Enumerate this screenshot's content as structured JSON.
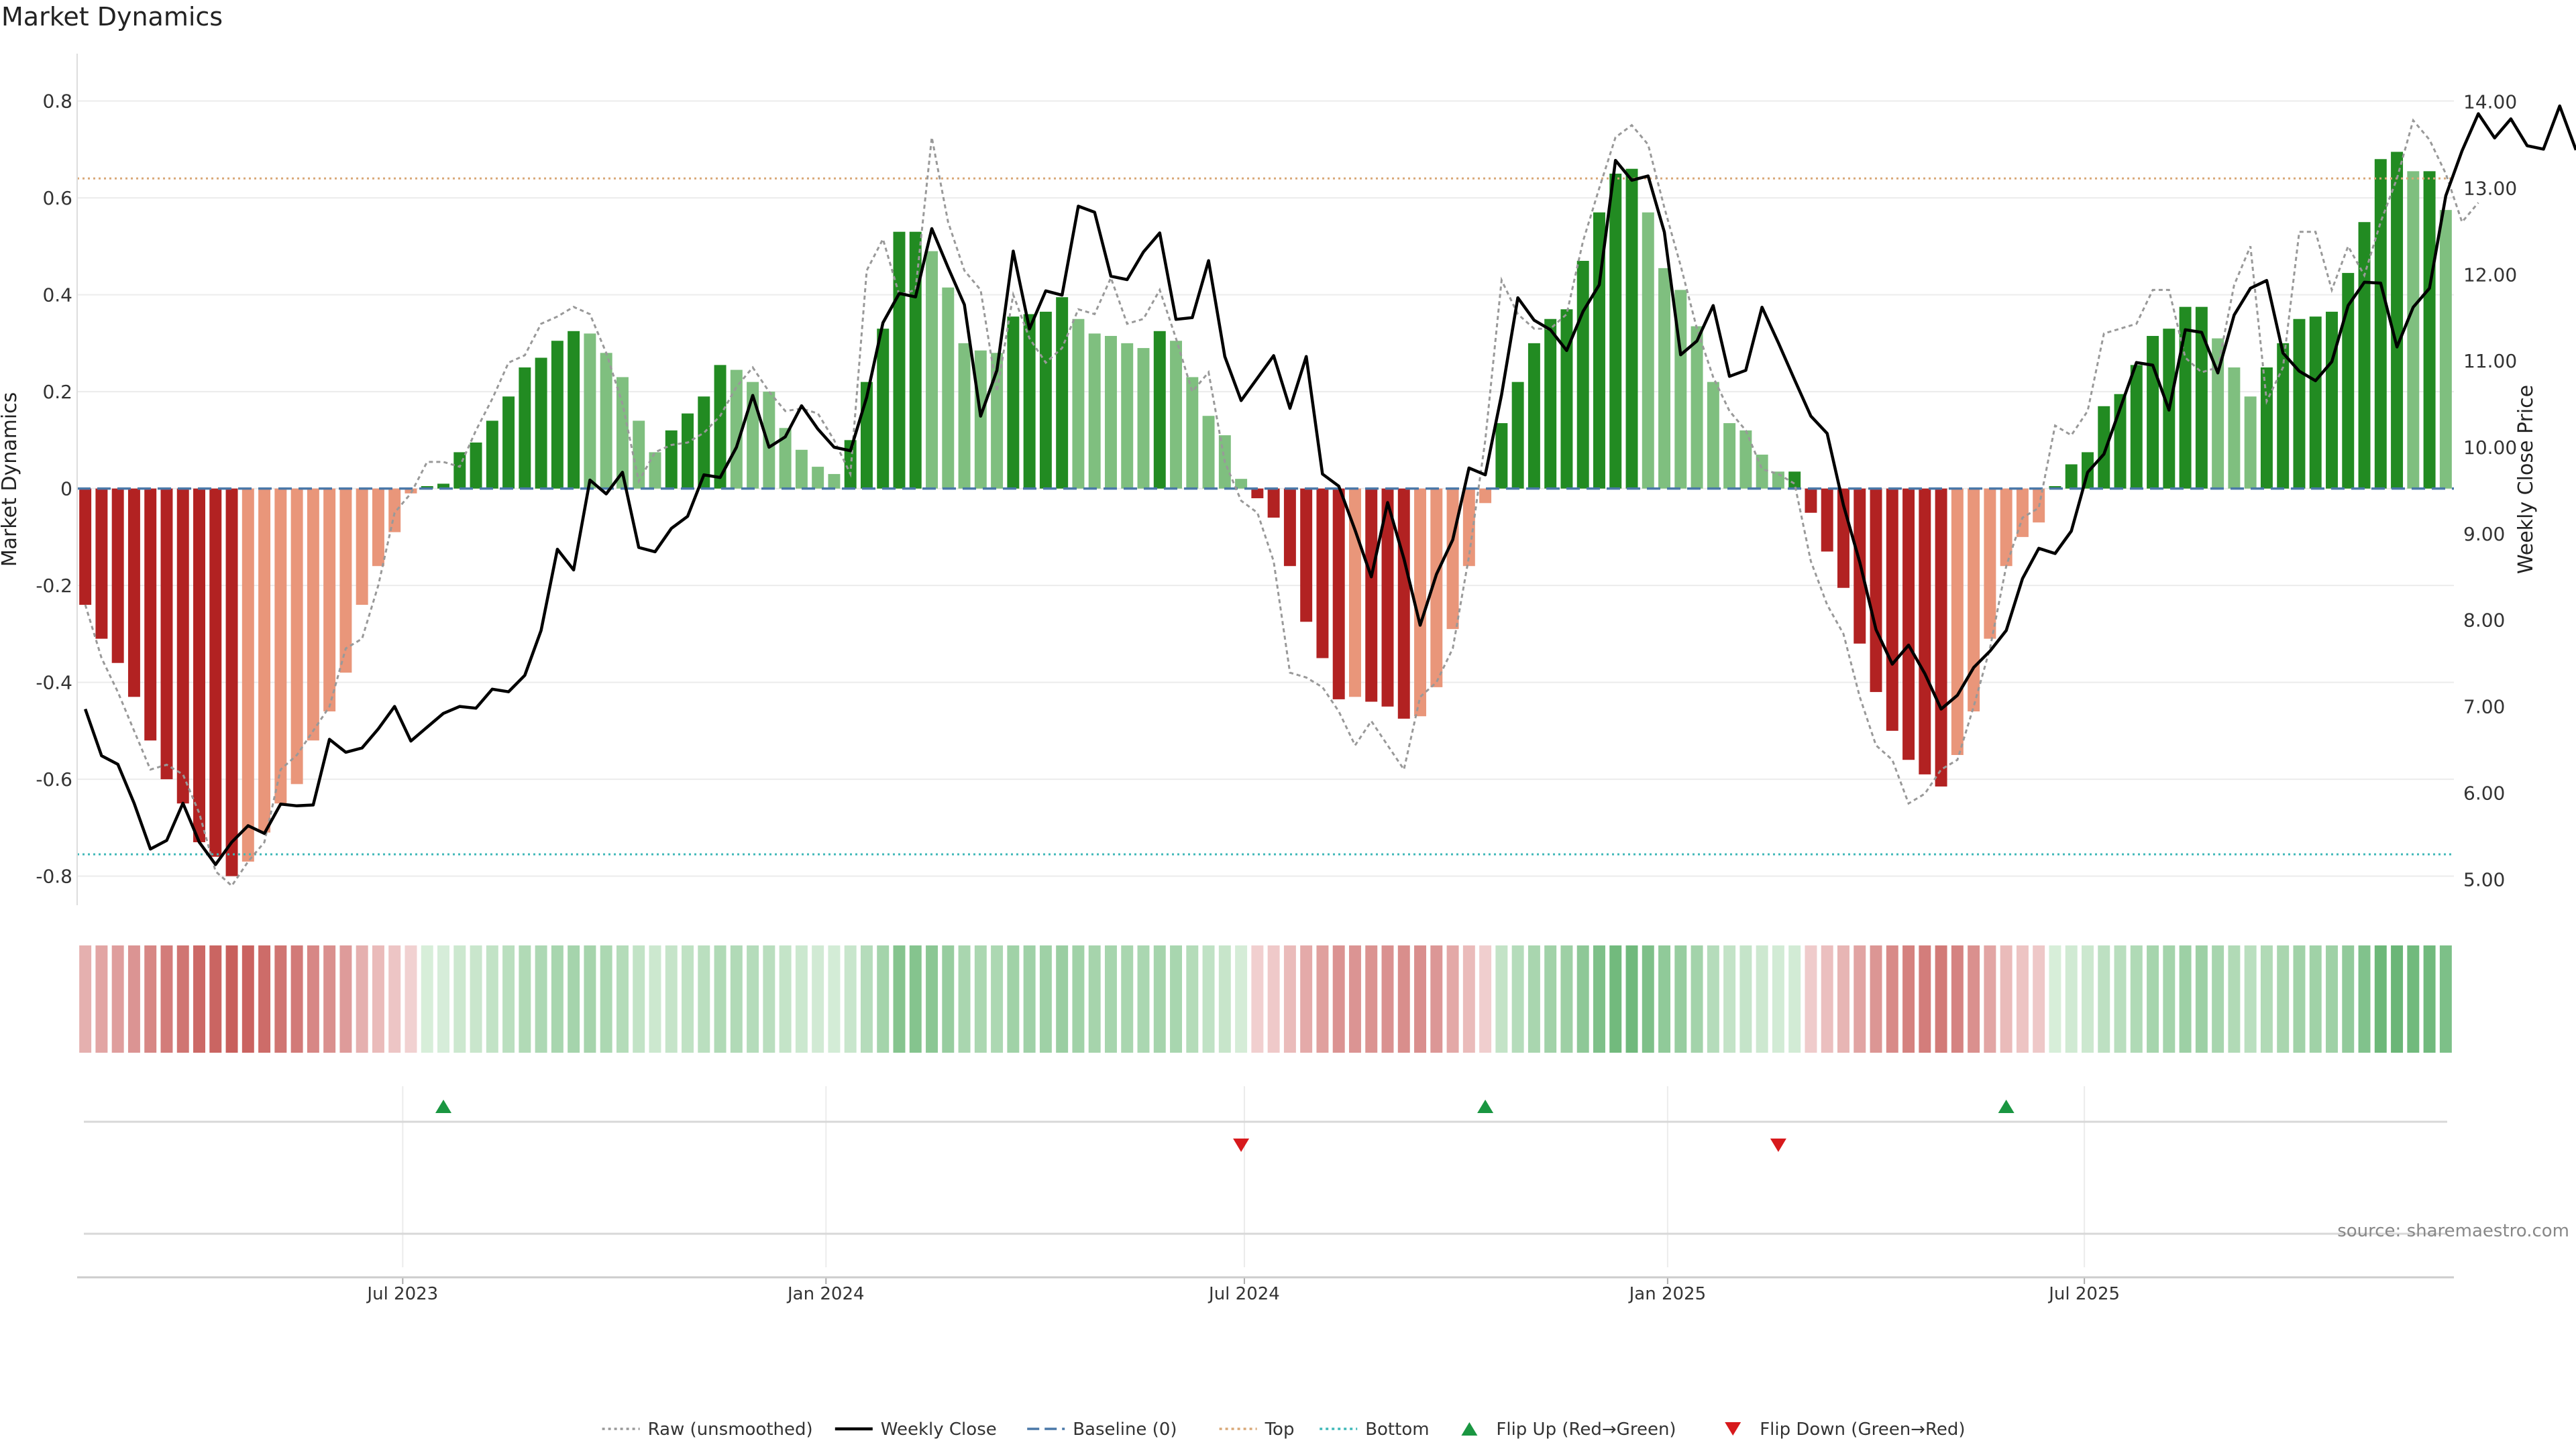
{
  "chart_data": {
    "type": "bar",
    "title": "Market Dynamics",
    "ylabel": "Market Dynamics",
    "y2label": "Weekly Close Price",
    "ylim": [
      -0.86,
      0.87
    ],
    "y2lim": [
      4.7,
      14.4
    ],
    "yticks": [
      "0.8",
      "0.6",
      "0.4",
      "0.2",
      "0",
      "-0.2",
      "-0.4",
      "-0.6",
      "-0.8"
    ],
    "y2ticks": [
      "14.00",
      "13.00",
      "12.00",
      "11.00",
      "10.00",
      "9.00",
      "8.00",
      "7.00",
      "6.00",
      "5.00"
    ],
    "xticks": [
      "Jul 2023",
      "Jan 2024",
      "Jul 2024",
      "Jan 2025",
      "Jul 2025"
    ],
    "xtick_weeks": [
      20,
      46,
      71.7,
      97.7,
      123.3
    ],
    "top_line": 0.64,
    "bottom_line": -0.755,
    "baseline": 0,
    "grid": true,
    "legend_position": "bottom-center",
    "source_text": "source: sharemaestro.com",
    "legend": [
      {
        "label": "Raw (unsmoothed)",
        "kind": "dotted",
        "color": "#999999"
      },
      {
        "label": "Weekly Close",
        "kind": "solid",
        "color": "#000000"
      },
      {
        "label": "Baseline (0)",
        "kind": "dashed",
        "color": "#4a78a8"
      },
      {
        "label": "Top",
        "kind": "dotted",
        "color": "#d9a877"
      },
      {
        "label": "Bottom",
        "kind": "dotted",
        "color": "#3fb8b8"
      },
      {
        "label": "Flip Up (Red→Green)",
        "kind": "triangle-up",
        "color": "#1a9641"
      },
      {
        "label": "Flip Down (Green→Red)",
        "kind": "triangle-down",
        "color": "#d7191c"
      }
    ],
    "flip_up_weeks": [
      22,
      86,
      118
    ],
    "flip_down_weeks": [
      71,
      104
    ],
    "colors": {
      "strong_green": "#228b22",
      "light_green": "#7fbf7f",
      "strong_red": "#b22222",
      "light_red": "#e9967a",
      "weekly_close": "#000000",
      "raw": "#999999"
    },
    "series": [
      {
        "name": "Market Dynamics",
        "values": [
          -0.24,
          -0.31,
          -0.36,
          -0.43,
          -0.52,
          -0.6,
          -0.65,
          -0.73,
          -0.76,
          -0.8,
          -0.77,
          -0.71,
          -0.65,
          -0.61,
          -0.52,
          -0.46,
          -0.38,
          -0.24,
          -0.16,
          -0.09,
          -0.01,
          0.005,
          0.01,
          0.075,
          0.095,
          0.14,
          0.19,
          0.25,
          0.27,
          0.305,
          0.325,
          0.32,
          0.28,
          0.23,
          0.14,
          0.075,
          0.12,
          0.155,
          0.19,
          0.255,
          0.245,
          0.22,
          0.2,
          0.125,
          0.08,
          0.045,
          0.03,
          0.1,
          0.22,
          0.33,
          0.53,
          0.53,
          0.49,
          0.415,
          0.3,
          0.285,
          0.28,
          0.355,
          0.36,
          0.365,
          0.395,
          0.35,
          0.32,
          0.315,
          0.3,
          0.29,
          0.325,
          0.305,
          0.23,
          0.15,
          0.11,
          0.02,
          -0.02,
          -0.06,
          -0.16,
          -0.275,
          -0.35,
          -0.435,
          -0.43,
          -0.44,
          -0.45,
          -0.475,
          -0.47,
          -0.41,
          -0.29,
          -0.16,
          -0.03,
          0.135,
          0.22,
          0.3,
          0.35,
          0.37,
          0.47,
          0.57,
          0.65,
          0.66,
          0.57,
          0.455,
          0.41,
          0.335,
          0.22,
          0.135,
          0.12,
          0.07,
          0.035,
          0.035,
          -0.05,
          -0.13,
          -0.205,
          -0.32,
          -0.42,
          -0.5,
          -0.56,
          -0.59,
          -0.615,
          -0.55,
          -0.46,
          -0.31,
          -0.16,
          -0.1,
          -0.07,
          0.005,
          0.05,
          0.075,
          0.17,
          0.195,
          0.255,
          0.315,
          0.33,
          0.375,
          0.375,
          0.31,
          0.25,
          0.19,
          0.25,
          0.3,
          0.35,
          0.355,
          0.365,
          0.445,
          0.55,
          0.68,
          0.695,
          0.655,
          0.655,
          0.575
        ]
      },
      {
        "name": "Weekly Close",
        "values": [
          6.97,
          6.43,
          6.33,
          5.88,
          5.35,
          5.45,
          5.88,
          5.43,
          5.17,
          5.43,
          5.62,
          5.53,
          5.87,
          5.85,
          5.86,
          6.62,
          6.47,
          6.52,
          6.74,
          7.0,
          6.6,
          6.76,
          6.92,
          7.0,
          6.98,
          7.2,
          7.17,
          7.36,
          7.88,
          8.82,
          8.58,
          9.62,
          9.46,
          9.71,
          8.84,
          8.79,
          9.06,
          9.2,
          9.68,
          9.65,
          10.0,
          10.6,
          10.0,
          10.12,
          10.48,
          10.21,
          10.0,
          9.96,
          10.58,
          11.44,
          11.78,
          11.74,
          12.53,
          12.08,
          11.65,
          10.36,
          10.89,
          12.27,
          11.37,
          11.81,
          11.76,
          12.79,
          12.72,
          11.98,
          11.94,
          12.26,
          12.48,
          11.48,
          11.5,
          12.16,
          11.05,
          10.54,
          10.8,
          11.06,
          10.45,
          11.05,
          9.69,
          9.55,
          9.04,
          8.5,
          9.36,
          8.71,
          7.94,
          8.53,
          8.93,
          9.76,
          9.68,
          10.61,
          11.73,
          11.47,
          11.36,
          11.12,
          11.57,
          11.88,
          13.32,
          13.09,
          13.14,
          12.49,
          11.07,
          11.23,
          11.64,
          10.82,
          10.89,
          11.62,
          11.21,
          10.78,
          10.36,
          10.16,
          9.33,
          8.67,
          7.89,
          7.49,
          7.71,
          7.38,
          6.97,
          7.13,
          7.45,
          7.64,
          7.88,
          8.48,
          8.83,
          8.77,
          9.03,
          9.71,
          9.92,
          10.45,
          10.98,
          10.95,
          10.43,
          11.36,
          11.33,
          10.86,
          11.53,
          11.84,
          11.93,
          11.09,
          10.88,
          10.77,
          10.99,
          11.64,
          11.91,
          11.9,
          11.16,
          11.62,
          11.84,
          12.91,
          13.43,
          13.86,
          13.58,
          13.8,
          13.49,
          13.45,
          13.95,
          13.44
        ]
      },
      {
        "name": "Raw (unsmoothed)",
        "values": [
          -0.24,
          -0.35,
          -0.42,
          -0.5,
          -0.58,
          -0.57,
          -0.59,
          -0.67,
          -0.79,
          -0.82,
          -0.77,
          -0.73,
          -0.58,
          -0.55,
          -0.5,
          -0.45,
          -0.33,
          -0.31,
          -0.2,
          -0.05,
          -0.01,
          0.055,
          0.055,
          0.045,
          0.12,
          0.185,
          0.26,
          0.275,
          0.34,
          0.355,
          0.375,
          0.36,
          0.28,
          0.175,
          0.015,
          0.075,
          0.09,
          0.095,
          0.115,
          0.15,
          0.21,
          0.25,
          0.2,
          0.16,
          0.165,
          0.155,
          0.1,
          0.03,
          0.45,
          0.515,
          0.4,
          0.41,
          0.725,
          0.55,
          0.45,
          0.41,
          0.2,
          0.4,
          0.31,
          0.26,
          0.29,
          0.37,
          0.36,
          0.435,
          0.34,
          0.35,
          0.41,
          0.31,
          0.2,
          0.24,
          0.055,
          -0.025,
          -0.05,
          -0.15,
          -0.38,
          -0.39,
          -0.41,
          -0.46,
          -0.53,
          -0.48,
          -0.53,
          -0.58,
          -0.43,
          -0.4,
          -0.33,
          -0.14,
          0.1,
          0.43,
          0.36,
          0.33,
          0.33,
          0.36,
          0.51,
          0.62,
          0.725,
          0.75,
          0.71,
          0.58,
          0.46,
          0.33,
          0.23,
          0.16,
          0.12,
          0.04,
          0.03,
          0.01,
          -0.15,
          -0.24,
          -0.3,
          -0.43,
          -0.53,
          -0.56,
          -0.65,
          -0.63,
          -0.58,
          -0.56,
          -0.45,
          -0.33,
          -0.16,
          -0.06,
          -0.04,
          0.13,
          0.11,
          0.16,
          0.32,
          0.33,
          0.34,
          0.41,
          0.41,
          0.27,
          0.24,
          0.25,
          0.42,
          0.5,
          0.18,
          0.25,
          0.53,
          0.53,
          0.41,
          0.5,
          0.44,
          0.55,
          0.64,
          0.76,
          0.72,
          0.65,
          0.55,
          0.59
        ]
      }
    ]
  }
}
